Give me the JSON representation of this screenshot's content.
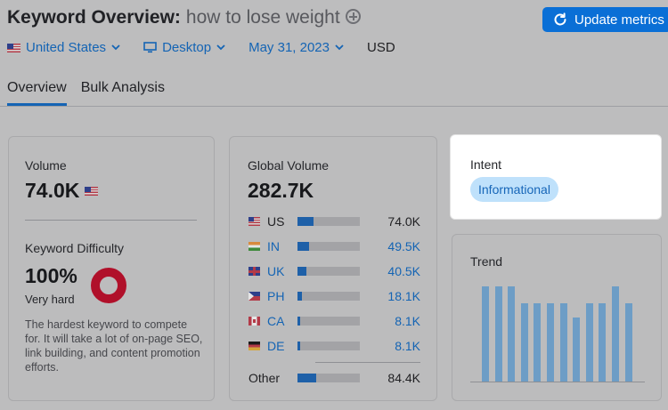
{
  "header": {
    "title": "Keyword Overview:",
    "keyword": "how to lose weight",
    "update_button": "Update metrics"
  },
  "filters": {
    "country": "United States",
    "device": "Desktop",
    "date": "May 31, 2023",
    "currency": "USD"
  },
  "tabs": [
    "Overview",
    "Bulk Analysis"
  ],
  "volume": {
    "label": "Volume",
    "value": "74.0K"
  },
  "keyword_difficulty": {
    "label": "Keyword Difficulty",
    "value": "100%",
    "level": "Very hard",
    "percent": 100,
    "description": "The hardest keyword to compete for. It will take a lot of on-page SEO, link building, and content promotion efforts.",
    "color": "#b0102a"
  },
  "global_volume": {
    "label": "Global Volume",
    "value": "282.7K",
    "rows": [
      {
        "code": "US",
        "value": "74.0K",
        "share": 0.26,
        "flag": "flag-us-icon"
      },
      {
        "code": "IN",
        "value": "49.5K",
        "share": 0.18,
        "flag": "flag-in-icon"
      },
      {
        "code": "UK",
        "value": "40.5K",
        "share": 0.14,
        "flag": "flag-uk-icon"
      },
      {
        "code": "PH",
        "value": "18.1K",
        "share": 0.07,
        "flag": "flag-ph-icon"
      },
      {
        "code": "CA",
        "value": "8.1K",
        "share": 0.04,
        "flag": "flag-ca-icon"
      },
      {
        "code": "DE",
        "value": "8.1K",
        "share": 0.04,
        "flag": "flag-de-icon"
      }
    ],
    "other": {
      "label": "Other",
      "value": "84.4K",
      "share": 0.3
    }
  },
  "intent": {
    "label": "Intent",
    "value": "Informational"
  },
  "trend": {
    "label": "Trend",
    "values": [
      0.82,
      0.82,
      0.82,
      0.68,
      0.68,
      0.68,
      0.68,
      0.55,
      0.68,
      0.68,
      0.82,
      0.68
    ]
  }
}
